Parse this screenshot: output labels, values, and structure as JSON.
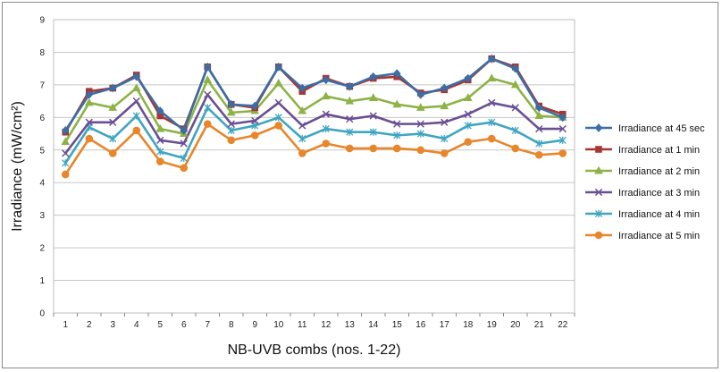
{
  "chart_data": {
    "type": "line",
    "title": "",
    "xlabel": "NB-UVB combs (nos. 1-22)",
    "ylabel": "Irradiance (mW/cm²)",
    "ylim": [
      0,
      9
    ],
    "yticks": [
      0,
      1,
      2,
      3,
      4,
      5,
      6,
      7,
      8,
      9
    ],
    "grid": "horizontal",
    "legend_position": "right",
    "categories": [
      "1",
      "2",
      "3",
      "4",
      "5",
      "6",
      "7",
      "8",
      "9",
      "10",
      "11",
      "12",
      "13",
      "14",
      "15",
      "16",
      "17",
      "18",
      "19",
      "20",
      "21",
      "22"
    ],
    "series": [
      {
        "name": "Irradiance at 45 sec",
        "color": "#3a6ea5",
        "marker": "diamond",
        "values": [
          5.6,
          6.7,
          6.9,
          7.25,
          6.2,
          5.6,
          7.55,
          6.4,
          6.35,
          7.55,
          6.9,
          7.15,
          6.95,
          7.25,
          7.35,
          6.7,
          6.9,
          7.2,
          7.8,
          7.5,
          6.3,
          6.0
        ]
      },
      {
        "name": "Irradiance at 1 min",
        "color": "#a83632",
        "marker": "square",
        "values": [
          5.55,
          6.8,
          6.9,
          7.3,
          6.05,
          5.65,
          7.55,
          6.4,
          6.3,
          7.55,
          6.8,
          7.2,
          6.95,
          7.2,
          7.25,
          6.75,
          6.85,
          7.15,
          7.8,
          7.55,
          6.35,
          6.1
        ]
      },
      {
        "name": "Irradiance at 2 min",
        "color": "#8db346",
        "marker": "triangle",
        "values": [
          5.25,
          6.45,
          6.3,
          6.9,
          5.65,
          5.5,
          7.15,
          6.15,
          6.2,
          7.05,
          6.2,
          6.65,
          6.5,
          6.6,
          6.4,
          6.3,
          6.35,
          6.6,
          7.2,
          7.0,
          6.05,
          6.0
        ]
      },
      {
        "name": "Irradiance at 3 min",
        "color": "#6a4f92",
        "marker": "x",
        "values": [
          4.9,
          5.85,
          5.85,
          6.5,
          5.3,
          5.2,
          6.7,
          5.8,
          5.9,
          6.45,
          5.75,
          6.1,
          5.95,
          6.05,
          5.8,
          5.8,
          5.85,
          6.1,
          6.45,
          6.3,
          5.65,
          5.65
        ]
      },
      {
        "name": "Irradiance at 4 min",
        "color": "#3fa6c0",
        "marker": "asterisk",
        "values": [
          4.6,
          5.7,
          5.35,
          6.05,
          4.95,
          4.75,
          6.3,
          5.6,
          5.75,
          6.0,
          5.35,
          5.65,
          5.55,
          5.55,
          5.45,
          5.5,
          5.35,
          5.75,
          5.85,
          5.6,
          5.2,
          5.3
        ]
      },
      {
        "name": "Irradiance at 5 min",
        "color": "#e7862b",
        "marker": "circle",
        "values": [
          4.25,
          5.35,
          4.9,
          5.6,
          4.65,
          4.45,
          5.8,
          5.3,
          5.45,
          5.75,
          4.9,
          5.2,
          5.05,
          5.05,
          5.05,
          5.0,
          4.9,
          5.25,
          5.35,
          5.05,
          4.85,
          4.9
        ]
      }
    ]
  }
}
